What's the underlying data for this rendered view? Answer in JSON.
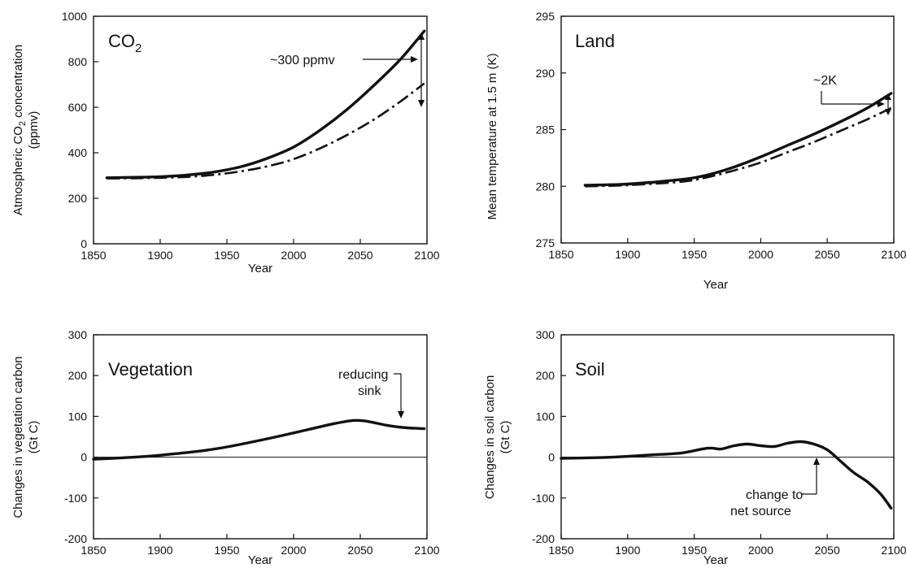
{
  "chart_data": [
    {
      "type": "line",
      "title": "CO2",
      "title_main": "CO",
      "title_sub": "2",
      "xlabel": "Year",
      "ylabel_line1": "Atmospheric CO",
      "ylabel_sub": "2",
      "ylabel_line1_end": " concentration",
      "ylabel_line2": "(ppmv)",
      "xlim": [
        1850,
        2100
      ],
      "ylim": [
        0,
        1000
      ],
      "xticks": [
        1850,
        1900,
        1950,
        2000,
        2050,
        2100
      ],
      "yticks": [
        0,
        200,
        400,
        600,
        800,
        1000
      ],
      "zero_line": false,
      "annotation": "~300 ppmv",
      "series": [
        {
          "style": "solid",
          "x": [
            1860,
            1880,
            1900,
            1920,
            1940,
            1960,
            1980,
            2000,
            2020,
            2040,
            2060,
            2080,
            2098
          ],
          "y": [
            290,
            292,
            295,
            302,
            315,
            338,
            375,
            425,
            500,
            590,
            695,
            810,
            935
          ]
        },
        {
          "style": "dashdot",
          "x": [
            1860,
            1880,
            1900,
            1920,
            1940,
            1960,
            1980,
            2000,
            2020,
            2040,
            2060,
            2080,
            2098
          ],
          "y": [
            287,
            288,
            290,
            294,
            303,
            318,
            340,
            372,
            420,
            478,
            545,
            625,
            705
          ]
        }
      ]
    },
    {
      "type": "line",
      "title": "Land",
      "xlabel": "Year",
      "ylabel": "Mean temperature at 1.5 m (K)",
      "xlim": [
        1850,
        2100
      ],
      "ylim": [
        275,
        295
      ],
      "xticks": [
        1850,
        1900,
        1950,
        2000,
        2050,
        2100
      ],
      "yticks": [
        275,
        280,
        285,
        290,
        295
      ],
      "zero_line": false,
      "annotation": "~2K",
      "series": [
        {
          "style": "solid",
          "x": [
            1868,
            1900,
            1940,
            1960,
            1980,
            2000,
            2020,
            2040,
            2060,
            2080,
            2098
          ],
          "y": [
            280.1,
            280.2,
            280.6,
            281.0,
            281.7,
            282.6,
            283.6,
            284.6,
            285.7,
            286.9,
            288.2
          ]
        },
        {
          "style": "dashdot",
          "x": [
            1868,
            1900,
            1940,
            1960,
            1980,
            2000,
            2020,
            2040,
            2060,
            2080,
            2098
          ],
          "y": [
            280.0,
            280.1,
            280.4,
            280.8,
            281.4,
            282.1,
            283.0,
            283.9,
            284.9,
            285.9,
            286.9
          ]
        }
      ]
    },
    {
      "type": "line",
      "title": "Vegetation",
      "xlabel": "Year",
      "ylabel_line1": "Changes in vegetation carbon",
      "ylabel_line2": "(Gt C)",
      "xlim": [
        1850,
        2100
      ],
      "ylim": [
        -200,
        300
      ],
      "xticks": [
        1850,
        1900,
        1950,
        2000,
        2050,
        2100
      ],
      "yticks": [
        -200,
        -100,
        0,
        100,
        200,
        300
      ],
      "zero_line": true,
      "annotation_line1": "reducing",
      "annotation_line2": "sink",
      "series": [
        {
          "style": "solid",
          "x": [
            1850,
            1870,
            1890,
            1910,
            1930,
            1950,
            1970,
            1990,
            2010,
            2030,
            2045,
            2055,
            2070,
            2085,
            2098
          ],
          "y": [
            -5,
            -2,
            2,
            8,
            15,
            25,
            38,
            52,
            67,
            82,
            90,
            88,
            78,
            72,
            70
          ]
        }
      ]
    },
    {
      "type": "line",
      "title": "Soil",
      "xlabel": "Year",
      "ylabel_line1": "Changes in soil carbon",
      "ylabel_line2": "(Gt C)",
      "xlim": [
        1850,
        2100
      ],
      "ylim": [
        -200,
        300
      ],
      "xticks": [
        1850,
        1900,
        1950,
        2000,
        2050,
        2100
      ],
      "yticks": [
        -200,
        -100,
        0,
        100,
        200,
        300
      ],
      "zero_line": true,
      "annotation_line1": "change to",
      "annotation_line2": "net source",
      "series": [
        {
          "style": "solid",
          "x": [
            1850,
            1880,
            1900,
            1920,
            1940,
            1960,
            1970,
            1980,
            1990,
            2000,
            2010,
            2020,
            2030,
            2040,
            2050,
            2060,
            2070,
            2080,
            2090,
            2098
          ],
          "y": [
            -3,
            -1,
            2,
            6,
            10,
            22,
            20,
            28,
            32,
            28,
            26,
            34,
            38,
            32,
            18,
            -10,
            -38,
            -60,
            -90,
            -125
          ]
        }
      ]
    }
  ]
}
